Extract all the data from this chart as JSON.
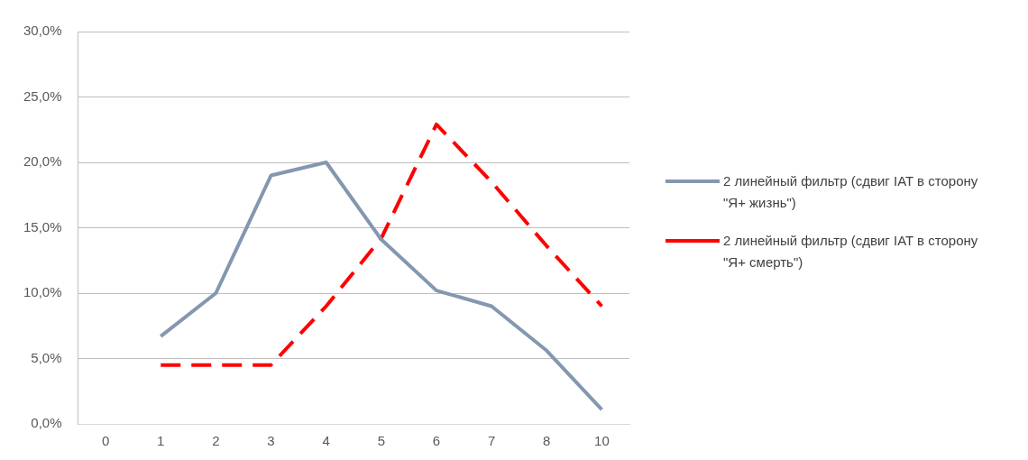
{
  "chart_data": {
    "type": "line",
    "categories": [
      "0",
      "1",
      "2",
      "3",
      "4",
      "5",
      "6",
      "7",
      "8",
      "10"
    ],
    "series": [
      {
        "name": "2 линейный фильтр (сдвиг IAT  в сторону \"Я+ жизнь\")",
        "color": "#8497b0",
        "line_style": "solid",
        "values": [
          null,
          6.7,
          10.0,
          19.0,
          20.0,
          14.1,
          10.2,
          9.0,
          5.6,
          1.1
        ]
      },
      {
        "name": "2 линейный фильтр (сдвиг IAT  в сторону \"Я+ смерть\")",
        "color": "#ff0000",
        "line_style": "dashed",
        "values": [
          null,
          4.5,
          4.5,
          4.5,
          9.0,
          14.2,
          22.9,
          18.5,
          13.6,
          9.0
        ]
      }
    ],
    "ylim": [
      0,
      30
    ],
    "yticks": [
      {
        "value": 0,
        "label": "0,0%"
      },
      {
        "value": 5,
        "label": "5,0%"
      },
      {
        "value": 10,
        "label": "10,0%"
      },
      {
        "value": 15,
        "label": "15,0%"
      },
      {
        "value": 20,
        "label": "20,0%"
      },
      {
        "value": 25,
        "label": "25,0%"
      },
      {
        "value": 30,
        "label": "30,0%"
      }
    ],
    "grid": "y",
    "legend": "right",
    "marker": "none"
  }
}
